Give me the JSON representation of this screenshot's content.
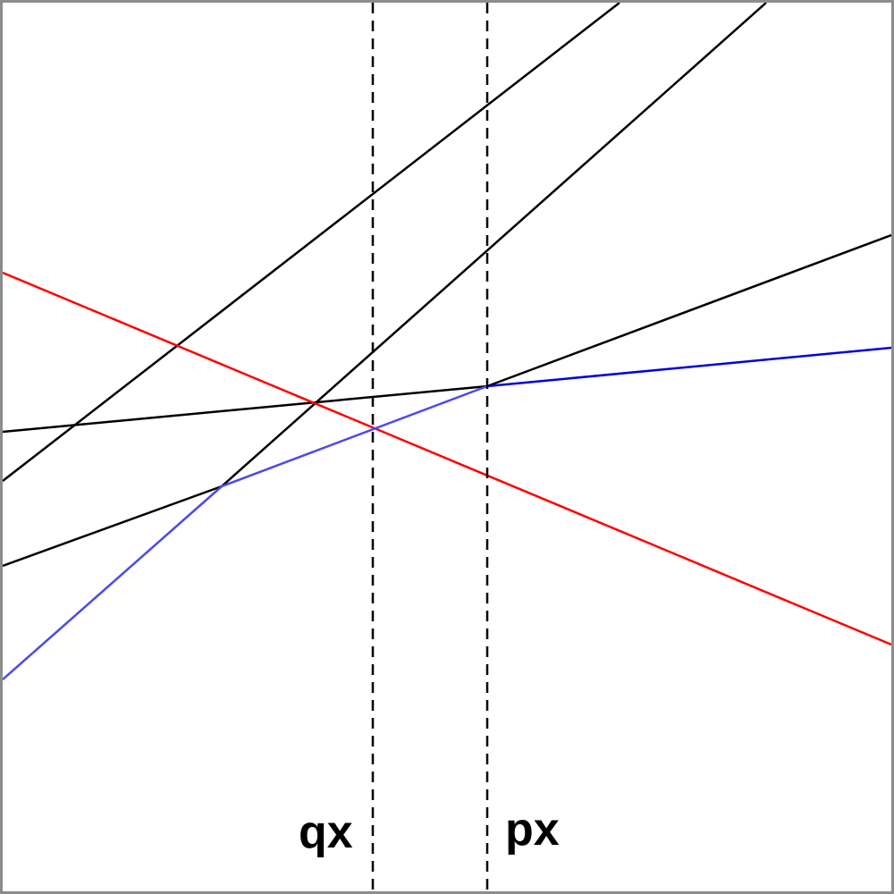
{
  "labels": {
    "q": "qx",
    "p": "px"
  },
  "colors": {
    "border": "#8c8c8c",
    "black_line": "#000000",
    "red_line": "#ff0000",
    "blue_segment_light": "#4a4aef",
    "blue_segment_dark": "#0000e0",
    "dashed_marker": "#000000"
  },
  "elements": {
    "black_lines": 4,
    "red_lines": 1,
    "blue_polyline_segments": 3,
    "dashed_vertical_markers": 2
  }
}
